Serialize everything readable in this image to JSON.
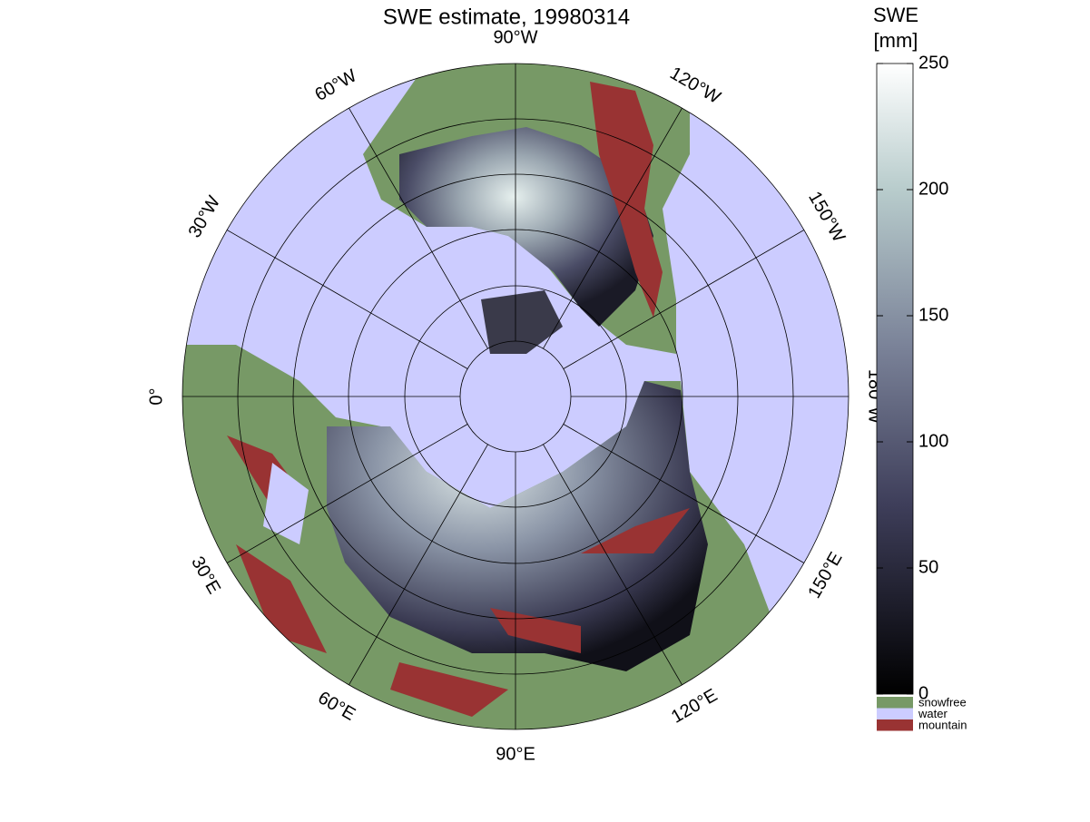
{
  "map": {
    "title": "SWE estimate, 19980314",
    "colorbar": {
      "label": [
        "SWE",
        "[mm]"
      ],
      "ylim": [
        0,
        250
      ],
      "ticks": [
        0,
        50,
        100,
        150,
        200,
        250
      ]
    },
    "legend": [
      {
        "name": "snowfree",
        "color": "#779966"
      },
      {
        "name": "water",
        "color": "#ccccff"
      },
      {
        "name": "mountain",
        "color": "#993333"
      }
    ],
    "meridian_labels": [
      "0°",
      "30°W",
      "60°W",
      "90°W",
      "120°W",
      "150°W",
      "180°W",
      "150°E",
      "120°E",
      "90°E",
      "60°E",
      "30°E"
    ]
  }
}
